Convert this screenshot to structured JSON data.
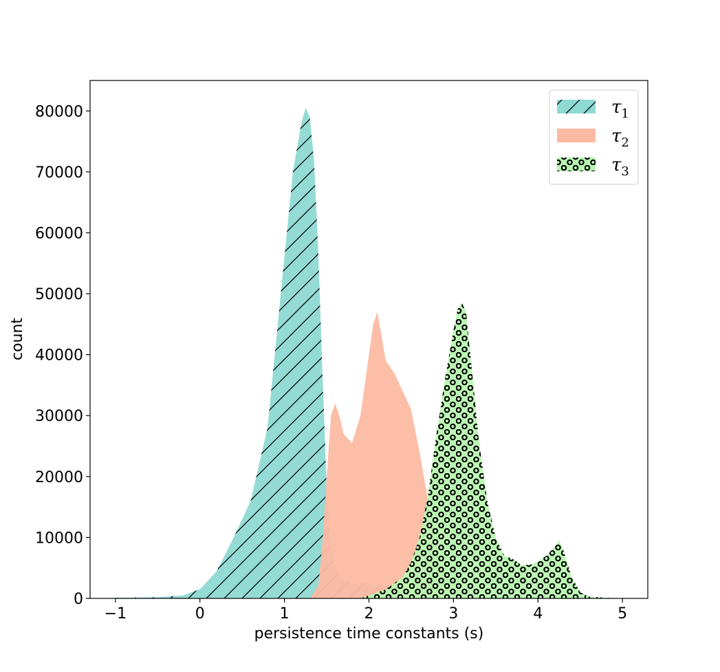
{
  "chart_data": {
    "type": "area",
    "xlabel": "persistence time constants (s)",
    "ylabel": "count",
    "xlim": [
      -1.3,
      5.3
    ],
    "ylim": [
      0,
      85000
    ],
    "xticks": [
      -1,
      0,
      1,
      2,
      3,
      4,
      5
    ],
    "xtick_labels": [
      "−1",
      "0",
      "1",
      "2",
      "3",
      "4",
      "5"
    ],
    "yticks": [
      0,
      10000,
      20000,
      30000,
      40000,
      50000,
      60000,
      70000,
      80000
    ],
    "ytick_labels": [
      "0",
      "10000",
      "20000",
      "30000",
      "40000",
      "50000",
      "60000",
      "70000",
      "80000"
    ],
    "grid": false,
    "legend_position": "top-right",
    "series": [
      {
        "name": "τ1",
        "symbol": "τ",
        "subscript": "1",
        "color": "#8fd9d3",
        "hatch": "diagonal",
        "x": [
          -1.0,
          -0.5,
          -0.2,
          0.0,
          0.2,
          0.4,
          0.6,
          0.8,
          0.9,
          1.0,
          1.1,
          1.2,
          1.25,
          1.3,
          1.35,
          1.4,
          1.45,
          1.5,
          1.55,
          1.6,
          1.7,
          1.8,
          2.0,
          2.2,
          2.4,
          2.6,
          2.8
        ],
        "y": [
          100,
          200,
          500,
          1500,
          4500,
          10000,
          16000,
          28000,
          42000,
          56000,
          70000,
          78000,
          80500,
          79000,
          72000,
          57000,
          37000,
          18000,
          9000,
          5000,
          3000,
          2500,
          2500,
          2000,
          1500,
          800,
          200
        ]
      },
      {
        "name": "τ2",
        "symbol": "τ",
        "subscript": "2",
        "color": "#fdbaa3",
        "hatch": "none",
        "x": [
          1.3,
          1.4,
          1.45,
          1.5,
          1.55,
          1.6,
          1.65,
          1.7,
          1.8,
          1.9,
          2.0,
          2.05,
          2.1,
          2.15,
          2.2,
          2.3,
          2.4,
          2.5,
          2.6,
          2.7,
          2.8,
          2.9,
          3.0,
          3.1,
          3.2,
          3.4
        ],
        "y": [
          0,
          2000,
          9000,
          20000,
          30000,
          32000,
          30000,
          27000,
          25500,
          30000,
          40000,
          45000,
          47000,
          43000,
          39000,
          37000,
          34000,
          31000,
          24000,
          16000,
          9000,
          4500,
          2000,
          800,
          200,
          0
        ]
      },
      {
        "name": "τ3",
        "symbol": "τ",
        "subscript": "3",
        "color": "#b8f5b0",
        "hatch": "circles",
        "x": [
          1.9,
          2.0,
          2.2,
          2.4,
          2.5,
          2.6,
          2.7,
          2.8,
          2.9,
          3.0,
          3.05,
          3.1,
          3.15,
          3.2,
          3.3,
          3.4,
          3.5,
          3.6,
          3.7,
          3.8,
          3.9,
          4.0,
          4.1,
          4.2,
          4.25,
          4.3,
          4.4,
          4.5,
          4.6,
          4.8,
          5.0
        ],
        "y": [
          0,
          500,
          1500,
          3500,
          6000,
          10000,
          17000,
          27000,
          36000,
          44000,
          47500,
          48500,
          47000,
          40000,
          26000,
          16000,
          10000,
          7000,
          6500,
          5500,
          5500,
          6000,
          7000,
          8500,
          9500,
          8000,
          3500,
          1000,
          300,
          100,
          0
        ]
      }
    ]
  }
}
